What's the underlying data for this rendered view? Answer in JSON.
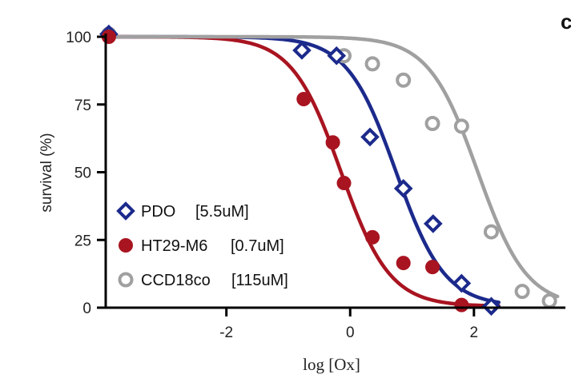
{
  "corner_label": "c",
  "chart_data": {
    "type": "scatter",
    "xlabel": "log [Ox]",
    "ylabel": "survival (%)",
    "xlim": [
      -3.95,
      3.4
    ],
    "ylim": [
      0,
      100
    ],
    "xticks": [
      -2,
      0,
      2
    ],
    "xtick_labels": [
      "-2",
      "0",
      "2"
    ],
    "yticks": [
      0,
      25,
      50,
      75,
      100
    ],
    "ytick_labels": [
      "0",
      "25",
      "50",
      "75",
      "100"
    ],
    "grid": false,
    "legend_position": "bottom-left",
    "series": [
      {
        "name": "PDO",
        "annotation": "[5.5uM]",
        "marker": "diamond-open",
        "color": "#1c2a8c",
        "ic50_log": 0.74,
        "points": [
          {
            "x": -3.9,
            "y": 101
          },
          {
            "x": -0.78,
            "y": 95
          },
          {
            "x": -0.22,
            "y": 93
          },
          {
            "x": 0.32,
            "y": 63
          },
          {
            "x": 0.86,
            "y": 44
          },
          {
            "x": 1.34,
            "y": 31
          },
          {
            "x": 1.8,
            "y": 9
          },
          {
            "x": 2.28,
            "y": 0.5
          }
        ]
      },
      {
        "name": "HT29-M6",
        "annotation": "[0.7uM]",
        "marker": "circle-filled",
        "color": "#a81420",
        "ic50_log": -0.15,
        "points": [
          {
            "x": -3.9,
            "y": 100
          },
          {
            "x": -0.75,
            "y": 77
          },
          {
            "x": -0.28,
            "y": 61
          },
          {
            "x": -0.1,
            "y": 46
          },
          {
            "x": 0.36,
            "y": 26
          },
          {
            "x": 0.86,
            "y": 16.5
          },
          {
            "x": 1.33,
            "y": 15
          },
          {
            "x": 1.8,
            "y": 1
          }
        ]
      },
      {
        "name": "CCD18co",
        "annotation": "[115uM]",
        "marker": "circle-open",
        "color": "#a0a0a0",
        "ic50_log": 2.06,
        "points": [
          {
            "x": -3.9,
            "y": 101
          },
          {
            "x": -0.1,
            "y": 93
          },
          {
            "x": 0.36,
            "y": 90
          },
          {
            "x": 0.86,
            "y": 84
          },
          {
            "x": 1.33,
            "y": 68
          },
          {
            "x": 1.8,
            "y": 67
          },
          {
            "x": 2.28,
            "y": 28
          },
          {
            "x": 2.78,
            "y": 6
          },
          {
            "x": 3.22,
            "y": 2.5
          }
        ]
      }
    ]
  }
}
